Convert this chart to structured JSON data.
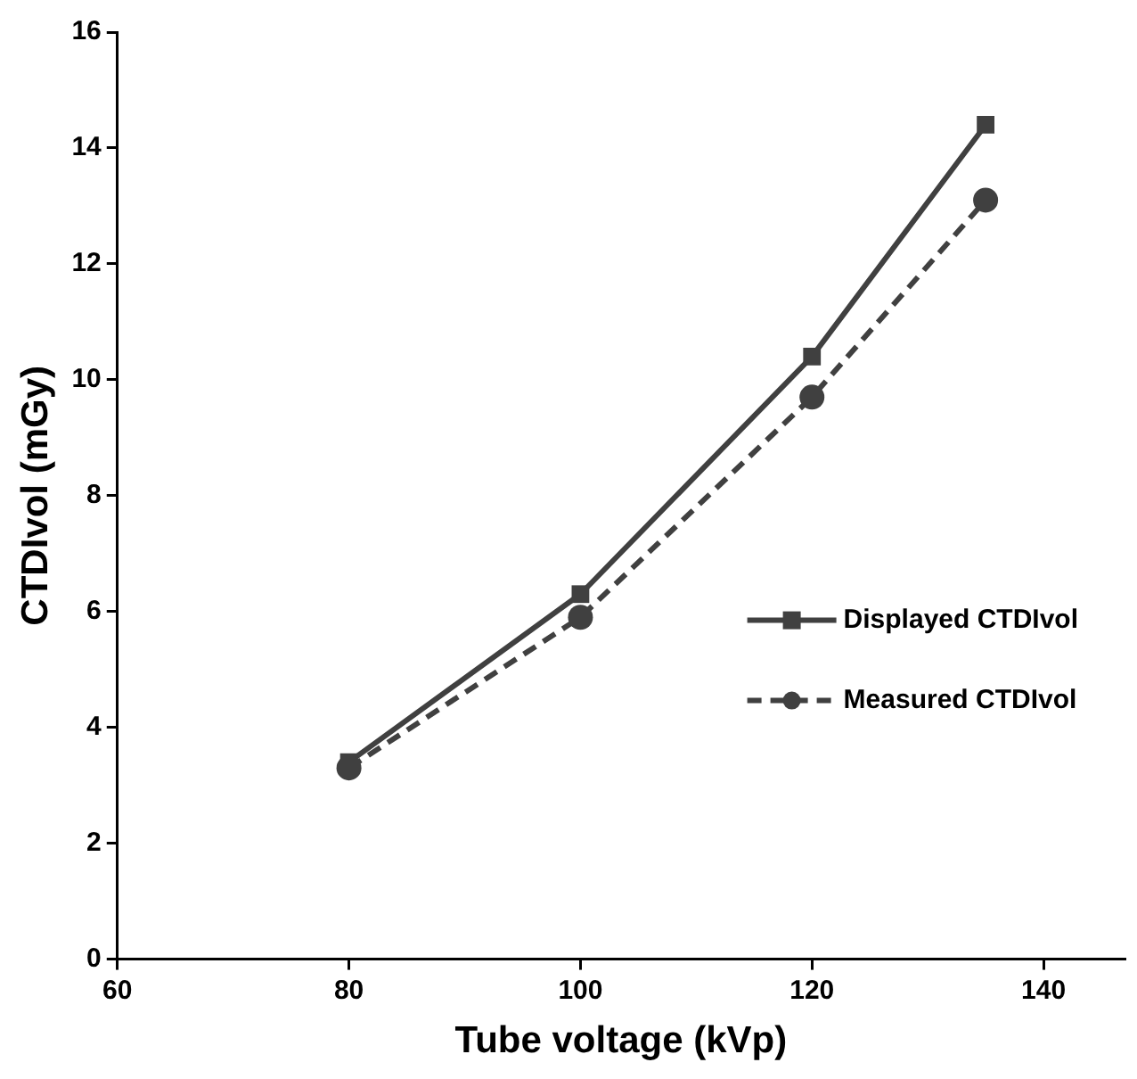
{
  "chart_data": {
    "type": "line",
    "xlabel": "Tube voltage (kVp)",
    "ylabel": "CTDIvol (mGy)",
    "x": [
      80,
      100,
      120,
      135
    ],
    "series": [
      {
        "name": "Displayed CTDIvol",
        "color": "#404040",
        "values": [
          3.4,
          6.3,
          10.4,
          14.4
        ],
        "marker": "square",
        "line_style": "solid"
      },
      {
        "name": "Measured CTDIvol",
        "color": "#404040",
        "values": [
          3.3,
          5.9,
          9.7,
          13.1
        ],
        "marker": "circle",
        "line_style": "dashed"
      }
    ],
    "xlim": [
      60,
      147
    ],
    "xticks": [
      60,
      80,
      100,
      120,
      140
    ],
    "ylim": [
      0,
      16
    ],
    "yticks": [
      0,
      2,
      4,
      6,
      8,
      10,
      12,
      14,
      16
    ],
    "grid": false,
    "legend": "bottom right"
  }
}
